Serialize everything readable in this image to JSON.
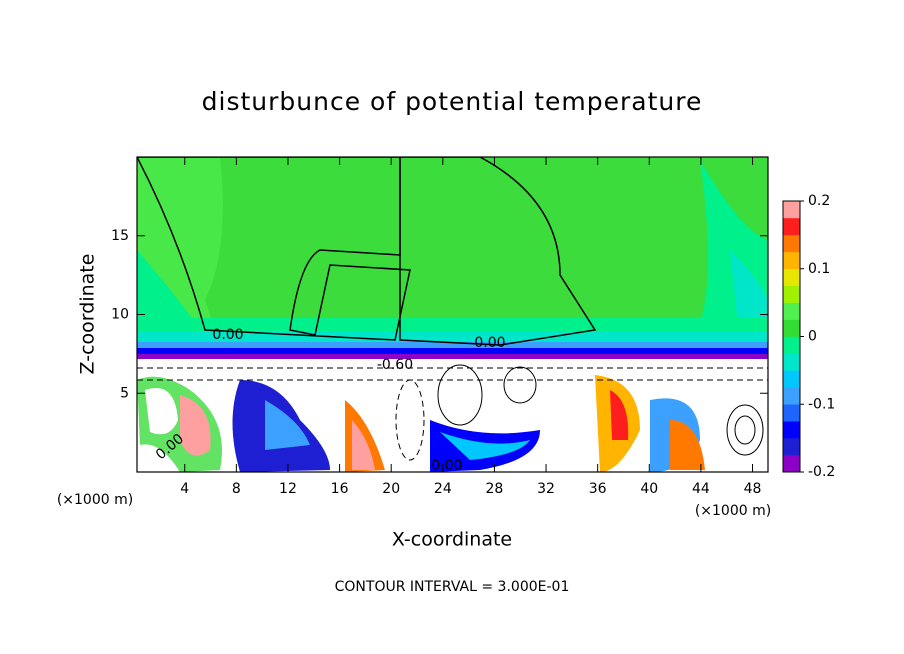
{
  "chart_data": {
    "type": "contour",
    "title": "disturbunce of potential temperature",
    "x_label": "X-coordinate",
    "y_label": "Z-coordinate",
    "x_unit_label": "(×1000 m)",
    "y_unit_label": "(×1000 m)",
    "footnote": "CONTOUR INTERVAL = 3.000E-01",
    "xlim": [
      0.3,
      49.2
    ],
    "xticks": [
      4,
      8,
      12,
      16,
      20,
      24,
      28,
      32,
      36,
      40,
      44,
      48
    ],
    "ylim": [
      0,
      20
    ],
    "yticks": [
      5,
      10,
      15
    ],
    "contour_labels": [
      "0.00",
      "0.00",
      "-0.60",
      "0.00",
      "0.00"
    ],
    "colorbar": {
      "lim": [
        -0.2,
        0.2
      ],
      "ticks": [
        -0.2,
        -0.1,
        0,
        0.1,
        0.2
      ],
      "colors": [
        "#8c00c8",
        "#1e1ed2",
        "#0000ff",
        "#1e64ff",
        "#3ca0ff",
        "#00c8ff",
        "#00e6c8",
        "#00f08c",
        "#32dc32",
        "#50f050",
        "#a0f000",
        "#e6e600",
        "#ffb400",
        "#ff7800",
        "#ff1e1e",
        "#ffa0a0"
      ]
    }
  }
}
